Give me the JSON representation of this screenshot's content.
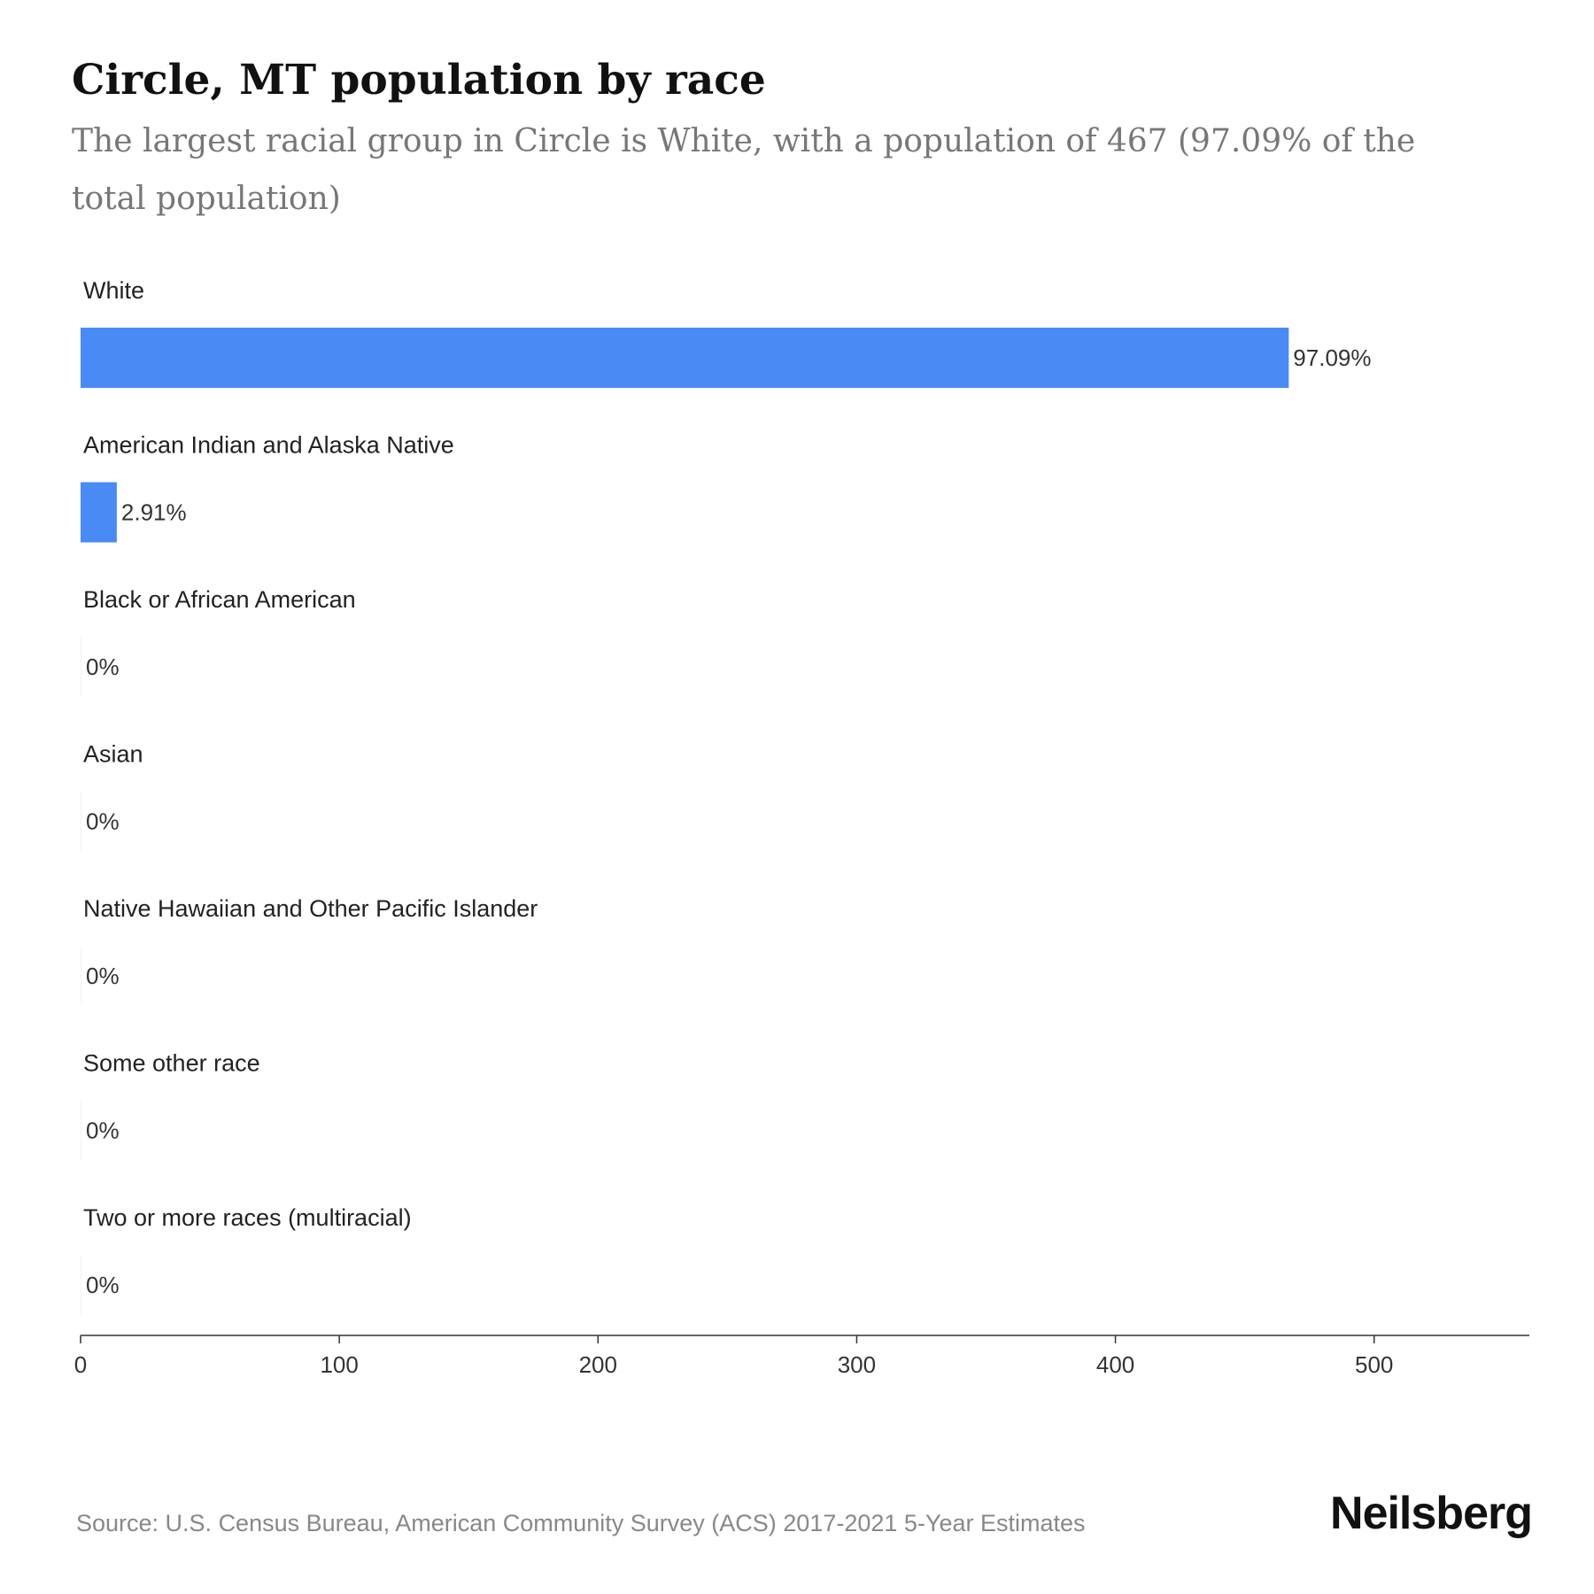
{
  "header": {
    "title": "Circle, MT population by race",
    "subtitle": "The largest racial group in Circle is White, with a population of 467 (97.09% of the total population)"
  },
  "chart_data": {
    "type": "bar",
    "orientation": "horizontal",
    "categories": [
      "White",
      "American Indian and Alaska Native",
      "Black or African American",
      "Asian",
      "Native Hawaiian and Other Pacific Islander",
      "Some other race",
      "Two or more races (multiracial)"
    ],
    "values": [
      467,
      14,
      0,
      0,
      0,
      0,
      0
    ],
    "data_labels": [
      "97.09%",
      "2.91%",
      "0%",
      "0%",
      "0%",
      "0%",
      "0%"
    ],
    "xlim": [
      0,
      560
    ],
    "xticks": [
      0,
      100,
      200,
      300,
      400,
      500
    ],
    "bar_color": "#4A8AF4",
    "grid": false,
    "legend": "none"
  },
  "footer": {
    "source": "Source: U.S. Census Bureau, American Community Survey (ACS) 2017-2021 5-Year Estimates",
    "brand": "Neilsberg"
  }
}
